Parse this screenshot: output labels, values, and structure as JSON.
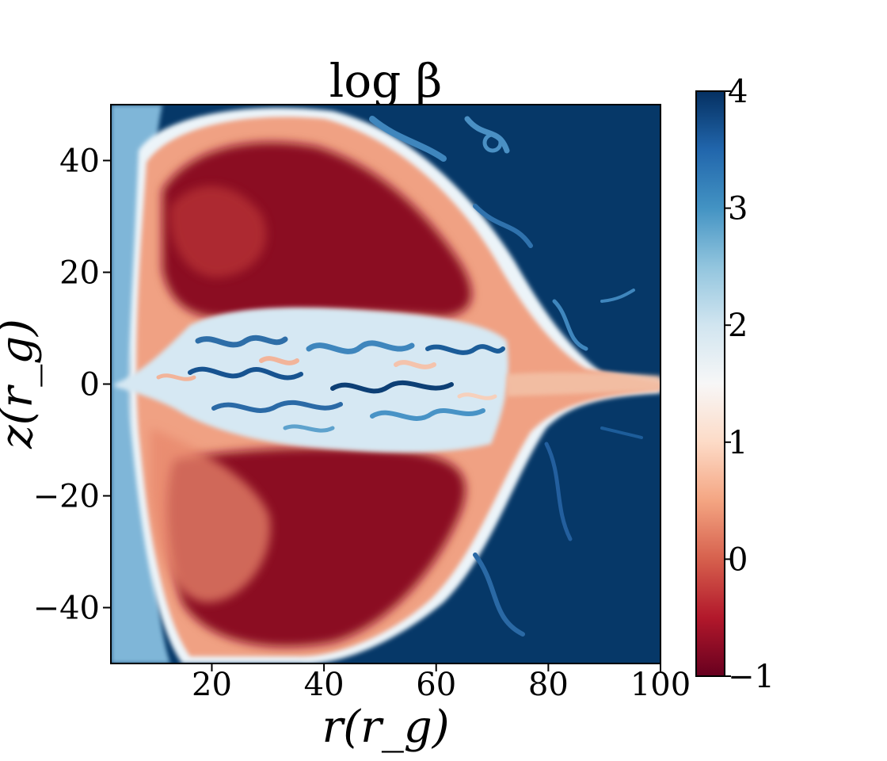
{
  "chart_data": {
    "type": "heatmap",
    "title": "log β",
    "xlabel": "r(r_g)",
    "ylabel": "z(r_g)",
    "xlim": [
      2,
      100
    ],
    "ylim": [
      -50,
      50
    ],
    "x_ticks": [
      20,
      40,
      60,
      80,
      100
    ],
    "x_tick_labels": [
      "20",
      "40",
      "60",
      "80",
      "100"
    ],
    "y_ticks": [
      -40,
      -20,
      0,
      20,
      40
    ],
    "y_tick_labels": [
      "−40",
      "−20",
      "0",
      "20",
      "40"
    ],
    "colorbar": {
      "range": [
        -1,
        4
      ],
      "ticks": [
        -1,
        0,
        1,
        2,
        3,
        4
      ],
      "tick_labels": [
        "−1",
        "0",
        "1",
        "2",
        "3",
        "4"
      ],
      "colormap": "RdBu",
      "stops": [
        "#67001f",
        "#b2182b",
        "#d6604d",
        "#f4a582",
        "#fddbc7",
        "#f7f7f7",
        "#d1e5f0",
        "#92c5de",
        "#4393c3",
        "#2166ac",
        "#053061"
      ]
    },
    "grid": false,
    "regions": [
      {
        "name": "upper magnetized lobe",
        "value": -0.8
      },
      {
        "name": "lower magnetized lobe",
        "value": -0.8
      },
      {
        "name": "turbulent disk midplane",
        "value": 2.0
      },
      {
        "name": "ambient medium",
        "value": 4.0
      }
    ]
  }
}
